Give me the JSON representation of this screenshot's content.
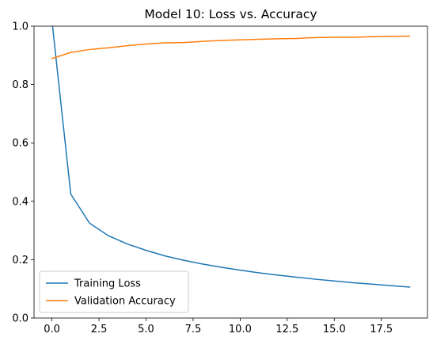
{
  "chart_data": {
    "type": "line",
    "title": "Model 10: Loss vs. Accuracy",
    "xlabel": "",
    "ylabel": "",
    "xlim": [
      -0.95,
      19.95
    ],
    "ylim": [
      0,
      1.0
    ],
    "xticks": [
      0,
      2.5,
      5,
      7.5,
      10,
      12.5,
      15,
      17.5
    ],
    "xtick_labels": [
      "0.0",
      "2.5",
      "5.0",
      "7.5",
      "10.0",
      "12.5",
      "15.0",
      "17.5"
    ],
    "yticks": [
      0,
      0.2,
      0.4,
      0.6,
      0.8,
      1.0
    ],
    "ytick_labels": [
      "0.0",
      "0.2",
      "0.4",
      "0.6",
      "0.8",
      "1.0"
    ],
    "grid": false,
    "legend_position": "lower-left",
    "x": [
      0,
      1,
      2,
      3,
      4,
      5,
      6,
      7,
      8,
      9,
      10,
      11,
      12,
      13,
      14,
      15,
      16,
      17,
      18,
      19
    ],
    "series": [
      {
        "name": "Training Loss",
        "color": "#1f77b4",
        "values": [
          1.02,
          0.425,
          0.325,
          0.282,
          0.254,
          0.232,
          0.213,
          0.198,
          0.185,
          0.174,
          0.164,
          0.155,
          0.147,
          0.14,
          0.133,
          0.127,
          0.121,
          0.116,
          0.111,
          0.106
        ]
      },
      {
        "name": "Validation Accuracy",
        "color": "#ff7f0e",
        "values": [
          0.889,
          0.91,
          0.92,
          0.926,
          0.933,
          0.939,
          0.943,
          0.944,
          0.948,
          0.951,
          0.953,
          0.955,
          0.957,
          0.958,
          0.961,
          0.962,
          0.962,
          0.964,
          0.965,
          0.966
        ]
      }
    ]
  }
}
